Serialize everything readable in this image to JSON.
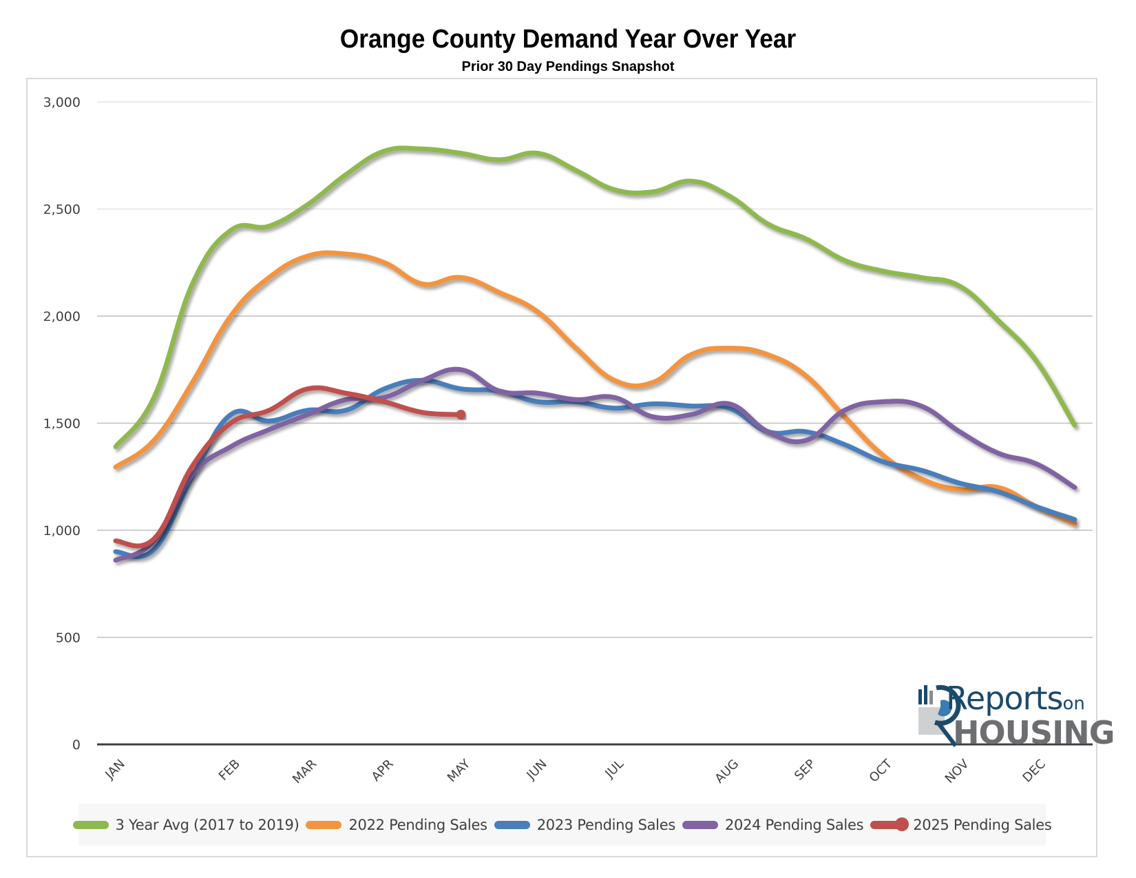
{
  "chart_data": {
    "type": "line",
    "title": "Orange County Demand Year Over Year",
    "subtitle": "Prior 30 Day Pendings Snapshot",
    "xlabel": "",
    "ylabel": "",
    "ylim": [
      0,
      3000
    ],
    "yticks": [
      0,
      500,
      1000,
      1500,
      2000,
      2500,
      3000
    ],
    "ytick_labels": [
      "0",
      "500",
      "1,000",
      "1,500",
      "2,000",
      "2,500",
      "3,000"
    ],
    "grid": true,
    "legend_position": "bottom",
    "point_count": 26,
    "month_labels": [
      {
        "index": 0,
        "label": "JAN"
      },
      {
        "index": 3,
        "label": "FEB"
      },
      {
        "index": 5,
        "label": "MAR"
      },
      {
        "index": 7,
        "label": "APR"
      },
      {
        "index": 9,
        "label": "MAY"
      },
      {
        "index": 11,
        "label": "JUN"
      },
      {
        "index": 13,
        "label": "JUL"
      },
      {
        "index": 16,
        "label": "AUG"
      },
      {
        "index": 18,
        "label": "SEP"
      },
      {
        "index": 20,
        "label": "OCT"
      },
      {
        "index": 22,
        "label": "NOV"
      },
      {
        "index": 24,
        "label": "DEC"
      }
    ],
    "series": [
      {
        "name": "3 Year Avg (2017 to 2019)",
        "color": "#8FB84F",
        "marker_at_end": false,
        "values": [
          1390,
          1620,
          2150,
          2400,
          2420,
          2520,
          2660,
          2770,
          2780,
          2760,
          2730,
          2760,
          2680,
          2590,
          2580,
          2630,
          2560,
          2430,
          2360,
          2260,
          2210,
          2180,
          2140,
          1980,
          1790,
          1490
        ]
      },
      {
        "name": "2022 Pending Sales",
        "color": "#F39441",
        "marker_at_end": false,
        "values": [
          1295,
          1420,
          1690,
          2000,
          2180,
          2280,
          2290,
          2250,
          2150,
          2180,
          2110,
          2020,
          1850,
          1700,
          1690,
          1820,
          1850,
          1820,
          1720,
          1530,
          1350,
          1240,
          1190,
          1200,
          1110,
          1030
        ]
      },
      {
        "name": "2023 Pending Sales",
        "color": "#4A7EBB",
        "marker_at_end": false,
        "values": [
          900,
          910,
          1250,
          1540,
          1510,
          1560,
          1560,
          1660,
          1700,
          1660,
          1650,
          1600,
          1600,
          1570,
          1590,
          1580,
          1570,
          1460,
          1460,
          1400,
          1320,
          1280,
          1220,
          1180,
          1110,
          1050
        ]
      },
      {
        "name": "2024 Pending Sales",
        "color": "#8064A2",
        "marker_at_end": false,
        "values": [
          860,
          950,
          1260,
          1390,
          1470,
          1540,
          1610,
          1620,
          1700,
          1750,
          1650,
          1640,
          1610,
          1620,
          1530,
          1540,
          1590,
          1460,
          1420,
          1560,
          1600,
          1580,
          1460,
          1360,
          1310,
          1200
        ]
      },
      {
        "name": "2025 Pending Sales",
        "color": "#C0504D",
        "marker_at_end": true,
        "values": [
          950,
          960,
          1300,
          1500,
          1560,
          1660,
          1640,
          1600,
          1550,
          1540
        ]
      }
    ]
  },
  "logo": {
    "line1": "Reports",
    "line1_small": "on",
    "line2": "HOUSING",
    "icon": "magnifier-chart-icon"
  }
}
